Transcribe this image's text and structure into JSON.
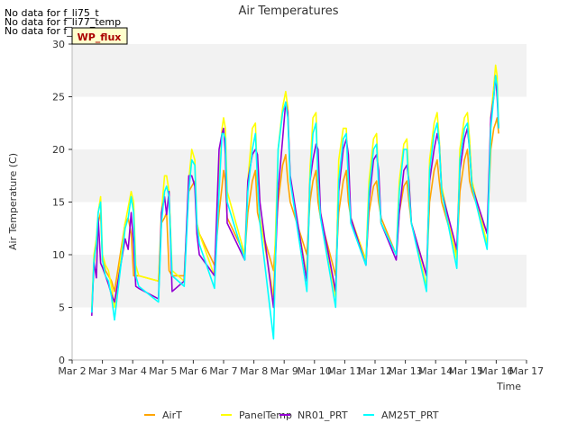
{
  "notices": [
    "No data for f_li75_t",
    "No data for f_li77_temp",
    "No data for f_sos"
  ],
  "tooltip_label": "WP_flux",
  "chart_data": {
    "type": "line",
    "title": "Air Temperatures",
    "xlabel": "Time",
    "ylabel": "Air Temperature (C)",
    "xlim": [
      2,
      17
    ],
    "ylim": [
      0,
      30
    ],
    "x_ticks": [
      2,
      3,
      4,
      5,
      6,
      7,
      8,
      9,
      10,
      11,
      12,
      13,
      14,
      15,
      16,
      17
    ],
    "x_tick_labels": [
      "Mar 2",
      "Mar 3",
      "Mar 4",
      "Mar 5",
      "Mar 6",
      "Mar 7",
      "Mar 8",
      "Mar 9",
      "Mar 10",
      "Mar 11",
      "Mar 12",
      "Mar 13",
      "Mar 14",
      "Mar 15",
      "Mar 16",
      "Mar 17"
    ],
    "y_ticks": [
      0,
      5,
      10,
      15,
      20,
      25,
      30
    ],
    "y_tick_labels": [
      "0",
      "5",
      "10",
      "15",
      "20",
      "25",
      "30"
    ],
    "grid": "horizontal bands",
    "legend_position": "bottom-center",
    "series": [
      {
        "name": "AirT",
        "color": "#FFA500",
        "x": [
          2.65,
          2.72,
          2.8,
          2.86,
          2.94,
          3.0,
          3.1,
          3.2,
          3.3,
          3.4,
          3.75,
          3.85,
          3.95,
          4.03,
          4.1,
          4.2,
          4.85,
          4.95,
          5.05,
          5.12,
          5.2,
          5.3,
          5.7,
          5.85,
          5.95,
          6.05,
          6.12,
          6.2,
          6.7,
          6.85,
          6.95,
          7.0,
          7.06,
          7.12,
          7.7,
          7.8,
          7.95,
          8.05,
          8.12,
          8.2,
          8.65,
          8.8,
          8.95,
          9.05,
          9.12,
          9.2,
          9.75,
          9.85,
          9.95,
          10.05,
          10.12,
          10.2,
          10.7,
          10.8,
          10.95,
          11.05,
          11.12,
          11.2,
          11.7,
          11.8,
          11.95,
          12.05,
          12.12,
          12.2,
          12.7,
          12.8,
          12.95,
          13.05,
          13.12,
          13.2,
          13.7,
          13.8,
          13.95,
          14.05,
          14.12,
          14.2,
          14.7,
          14.8,
          14.95,
          15.05,
          15.12,
          15.2,
          15.7,
          15.82,
          15.92,
          15.98,
          16.03,
          16.08
        ],
        "y": [
          4.8,
          9,
          11.5,
          13,
          14,
          9.5,
          8.5,
          8,
          7.5,
          6.5,
          13,
          13.5,
          12,
          8,
          8,
          8,
          7.5,
          13,
          13.5,
          14,
          8.5,
          8,
          8,
          16,
          16.5,
          17,
          13,
          12,
          9,
          14,
          16.5,
          18,
          17,
          13.5,
          10,
          14,
          17,
          18,
          14,
          13,
          8.5,
          15,
          18.5,
          19.5,
          17,
          15,
          10,
          15,
          17,
          18,
          15,
          13.5,
          8,
          14,
          17,
          18,
          15,
          13.5,
          9.5,
          14,
          16.5,
          17,
          15,
          13.5,
          10,
          14,
          16.5,
          17,
          15,
          13,
          8,
          15,
          18,
          19,
          17,
          15,
          10,
          16,
          19,
          20,
          17,
          16,
          12,
          20,
          22,
          22.5,
          23,
          21.5
        ]
      },
      {
        "name": "PanelTemp",
        "color": "#FFFF00",
        "x": [
          2.65,
          2.72,
          2.8,
          2.86,
          2.94,
          3.0,
          3.1,
          3.2,
          3.3,
          3.4,
          3.75,
          3.85,
          3.95,
          4.03,
          4.1,
          4.2,
          4.85,
          4.95,
          5.05,
          5.12,
          5.2,
          5.3,
          5.7,
          5.85,
          5.95,
          6.05,
          6.12,
          6.2,
          6.7,
          6.85,
          6.95,
          7.0,
          7.06,
          7.12,
          7.7,
          7.8,
          7.95,
          8.05,
          8.12,
          8.2,
          8.65,
          8.8,
          8.95,
          9.05,
          9.12,
          9.2,
          9.75,
          9.85,
          9.95,
          10.05,
          10.12,
          10.2,
          10.7,
          10.8,
          10.95,
          11.05,
          11.12,
          11.2,
          11.7,
          11.8,
          11.95,
          12.05,
          12.12,
          12.2,
          12.7,
          12.8,
          12.95,
          13.05,
          13.12,
          13.2,
          13.7,
          13.8,
          13.95,
          14.05,
          14.12,
          14.2,
          14.7,
          14.8,
          14.95,
          15.05,
          15.12,
          15.2,
          15.7,
          15.82,
          15.92,
          15.98,
          16.03,
          16.08
        ],
        "y": [
          4.8,
          10,
          11.5,
          14,
          15.5,
          10,
          9,
          8.5,
          7,
          5,
          13,
          14.5,
          16,
          15,
          9,
          8,
          7.5,
          14,
          17.5,
          17.5,
          16,
          8.5,
          7.5,
          17,
          20,
          19,
          13,
          12,
          8,
          17,
          22,
          23,
          22,
          16,
          10,
          17,
          22,
          22.5,
          17,
          13.5,
          6,
          20,
          24,
          25.5,
          24,
          17,
          8,
          18,
          23,
          23.5,
          17,
          14,
          6,
          19,
          22,
          22,
          17,
          13.5,
          9.5,
          17,
          21,
          21.5,
          17,
          13,
          10,
          17,
          20.5,
          21,
          17,
          13,
          7,
          19,
          22.5,
          23.5,
          21,
          16.5,
          9.5,
          20,
          23,
          23.5,
          21,
          17,
          11,
          23,
          26,
          28,
          27,
          22
        ]
      },
      {
        "name": "NR01_PRT",
        "color": "#9400D3",
        "x": [
          2.65,
          2.72,
          2.8,
          2.86,
          2.94,
          3.0,
          3.1,
          3.2,
          3.3,
          3.4,
          3.75,
          3.85,
          3.95,
          4.03,
          4.1,
          4.2,
          4.85,
          4.95,
          5.05,
          5.12,
          5.2,
          5.3,
          5.7,
          5.85,
          5.95,
          6.05,
          6.12,
          6.2,
          6.7,
          6.85,
          6.95,
          7.0,
          7.06,
          7.12,
          7.7,
          7.8,
          7.95,
          8.05,
          8.12,
          8.2,
          8.65,
          8.8,
          8.95,
          9.05,
          9.12,
          9.2,
          9.75,
          9.85,
          9.95,
          10.05,
          10.12,
          10.2,
          10.7,
          10.8,
          10.95,
          11.05,
          11.12,
          11.2,
          11.7,
          11.8,
          11.95,
          12.05,
          12.12,
          12.2,
          12.7,
          12.8,
          12.95,
          13.05,
          13.12,
          13.2,
          13.7,
          13.8,
          13.95,
          14.05,
          14.12,
          14.2,
          14.7,
          14.8,
          14.95,
          15.05,
          15.12,
          15.2,
          15.7,
          15.82,
          15.92,
          15.98,
          16.03,
          16.08
        ],
        "y": [
          4.2,
          9.3,
          7.8,
          13.5,
          9.2,
          8.8,
          8,
          7.2,
          6.2,
          5.5,
          11.5,
          10.5,
          14,
          11,
          7,
          6.8,
          5.8,
          14,
          15.5,
          13.8,
          16,
          6.5,
          7.5,
          17.5,
          17.5,
          16.5,
          12,
          10,
          8,
          20,
          21.5,
          22,
          19.5,
          13,
          9.5,
          17,
          19.5,
          20,
          19.5,
          15,
          5,
          16,
          21,
          24.5,
          23.5,
          17.5,
          7.5,
          17,
          19,
          20.5,
          20,
          14,
          6.5,
          16,
          20,
          21,
          19.5,
          13.5,
          9,
          15,
          19,
          19.5,
          18,
          13,
          9.5,
          14,
          18,
          18.5,
          17,
          13,
          8,
          17,
          20,
          21.5,
          20.5,
          16,
          10.5,
          18,
          21,
          22,
          20,
          16.5,
          12,
          23,
          25,
          27,
          25,
          22
        ]
      },
      {
        "name": "AM25T_PRT",
        "color": "#00FFFF",
        "x": [
          2.65,
          2.72,
          2.8,
          2.86,
          2.94,
          3.0,
          3.1,
          3.2,
          3.3,
          3.4,
          3.75,
          3.85,
          3.95,
          4.03,
          4.1,
          4.2,
          4.85,
          4.95,
          5.05,
          5.12,
          5.2,
          5.3,
          5.7,
          5.85,
          5.95,
          6.05,
          6.12,
          6.2,
          6.7,
          6.85,
          6.95,
          7.0,
          7.06,
          7.12,
          7.7,
          7.8,
          7.95,
          8.05,
          8.12,
          8.2,
          8.65,
          8.8,
          8.95,
          9.05,
          9.12,
          9.2,
          9.75,
          9.85,
          9.95,
          10.05,
          10.12,
          10.2,
          10.7,
          10.8,
          10.95,
          11.05,
          11.12,
          11.2,
          11.7,
          11.8,
          11.95,
          12.05,
          12.12,
          12.2,
          12.7,
          12.8,
          12.95,
          13.05,
          13.12,
          13.2,
          13.7,
          13.8,
          13.95,
          14.05,
          14.12,
          14.2,
          14.7,
          14.8,
          14.95,
          15.05,
          15.12,
          15.2,
          15.7,
          15.82,
          15.92,
          15.98,
          16.03,
          16.08
        ],
        "y": [
          4.5,
          9.5,
          11,
          14,
          15,
          9.5,
          8,
          7.5,
          6,
          3.8,
          12.5,
          13.5,
          15.5,
          14,
          8,
          7,
          5.5,
          13,
          16,
          16.5,
          15.5,
          8,
          7,
          16,
          19,
          18.5,
          13,
          11,
          6.8,
          16,
          21.5,
          21.5,
          21,
          15,
          9.5,
          16,
          20,
          21.5,
          17,
          13,
          2,
          20,
          23.5,
          24.5,
          23,
          17,
          6.5,
          17,
          21.5,
          22.5,
          17,
          13.5,
          5,
          17,
          21,
          21.5,
          17,
          13,
          9,
          16,
          20,
          20.5,
          16.5,
          13,
          10,
          16,
          20,
          20,
          16,
          13,
          6.5,
          18,
          21.5,
          22.5,
          20.5,
          16,
          8.7,
          19,
          22,
          22.5,
          20,
          16.5,
          10.5,
          22,
          25,
          27,
          26,
          22
        ]
      }
    ]
  }
}
